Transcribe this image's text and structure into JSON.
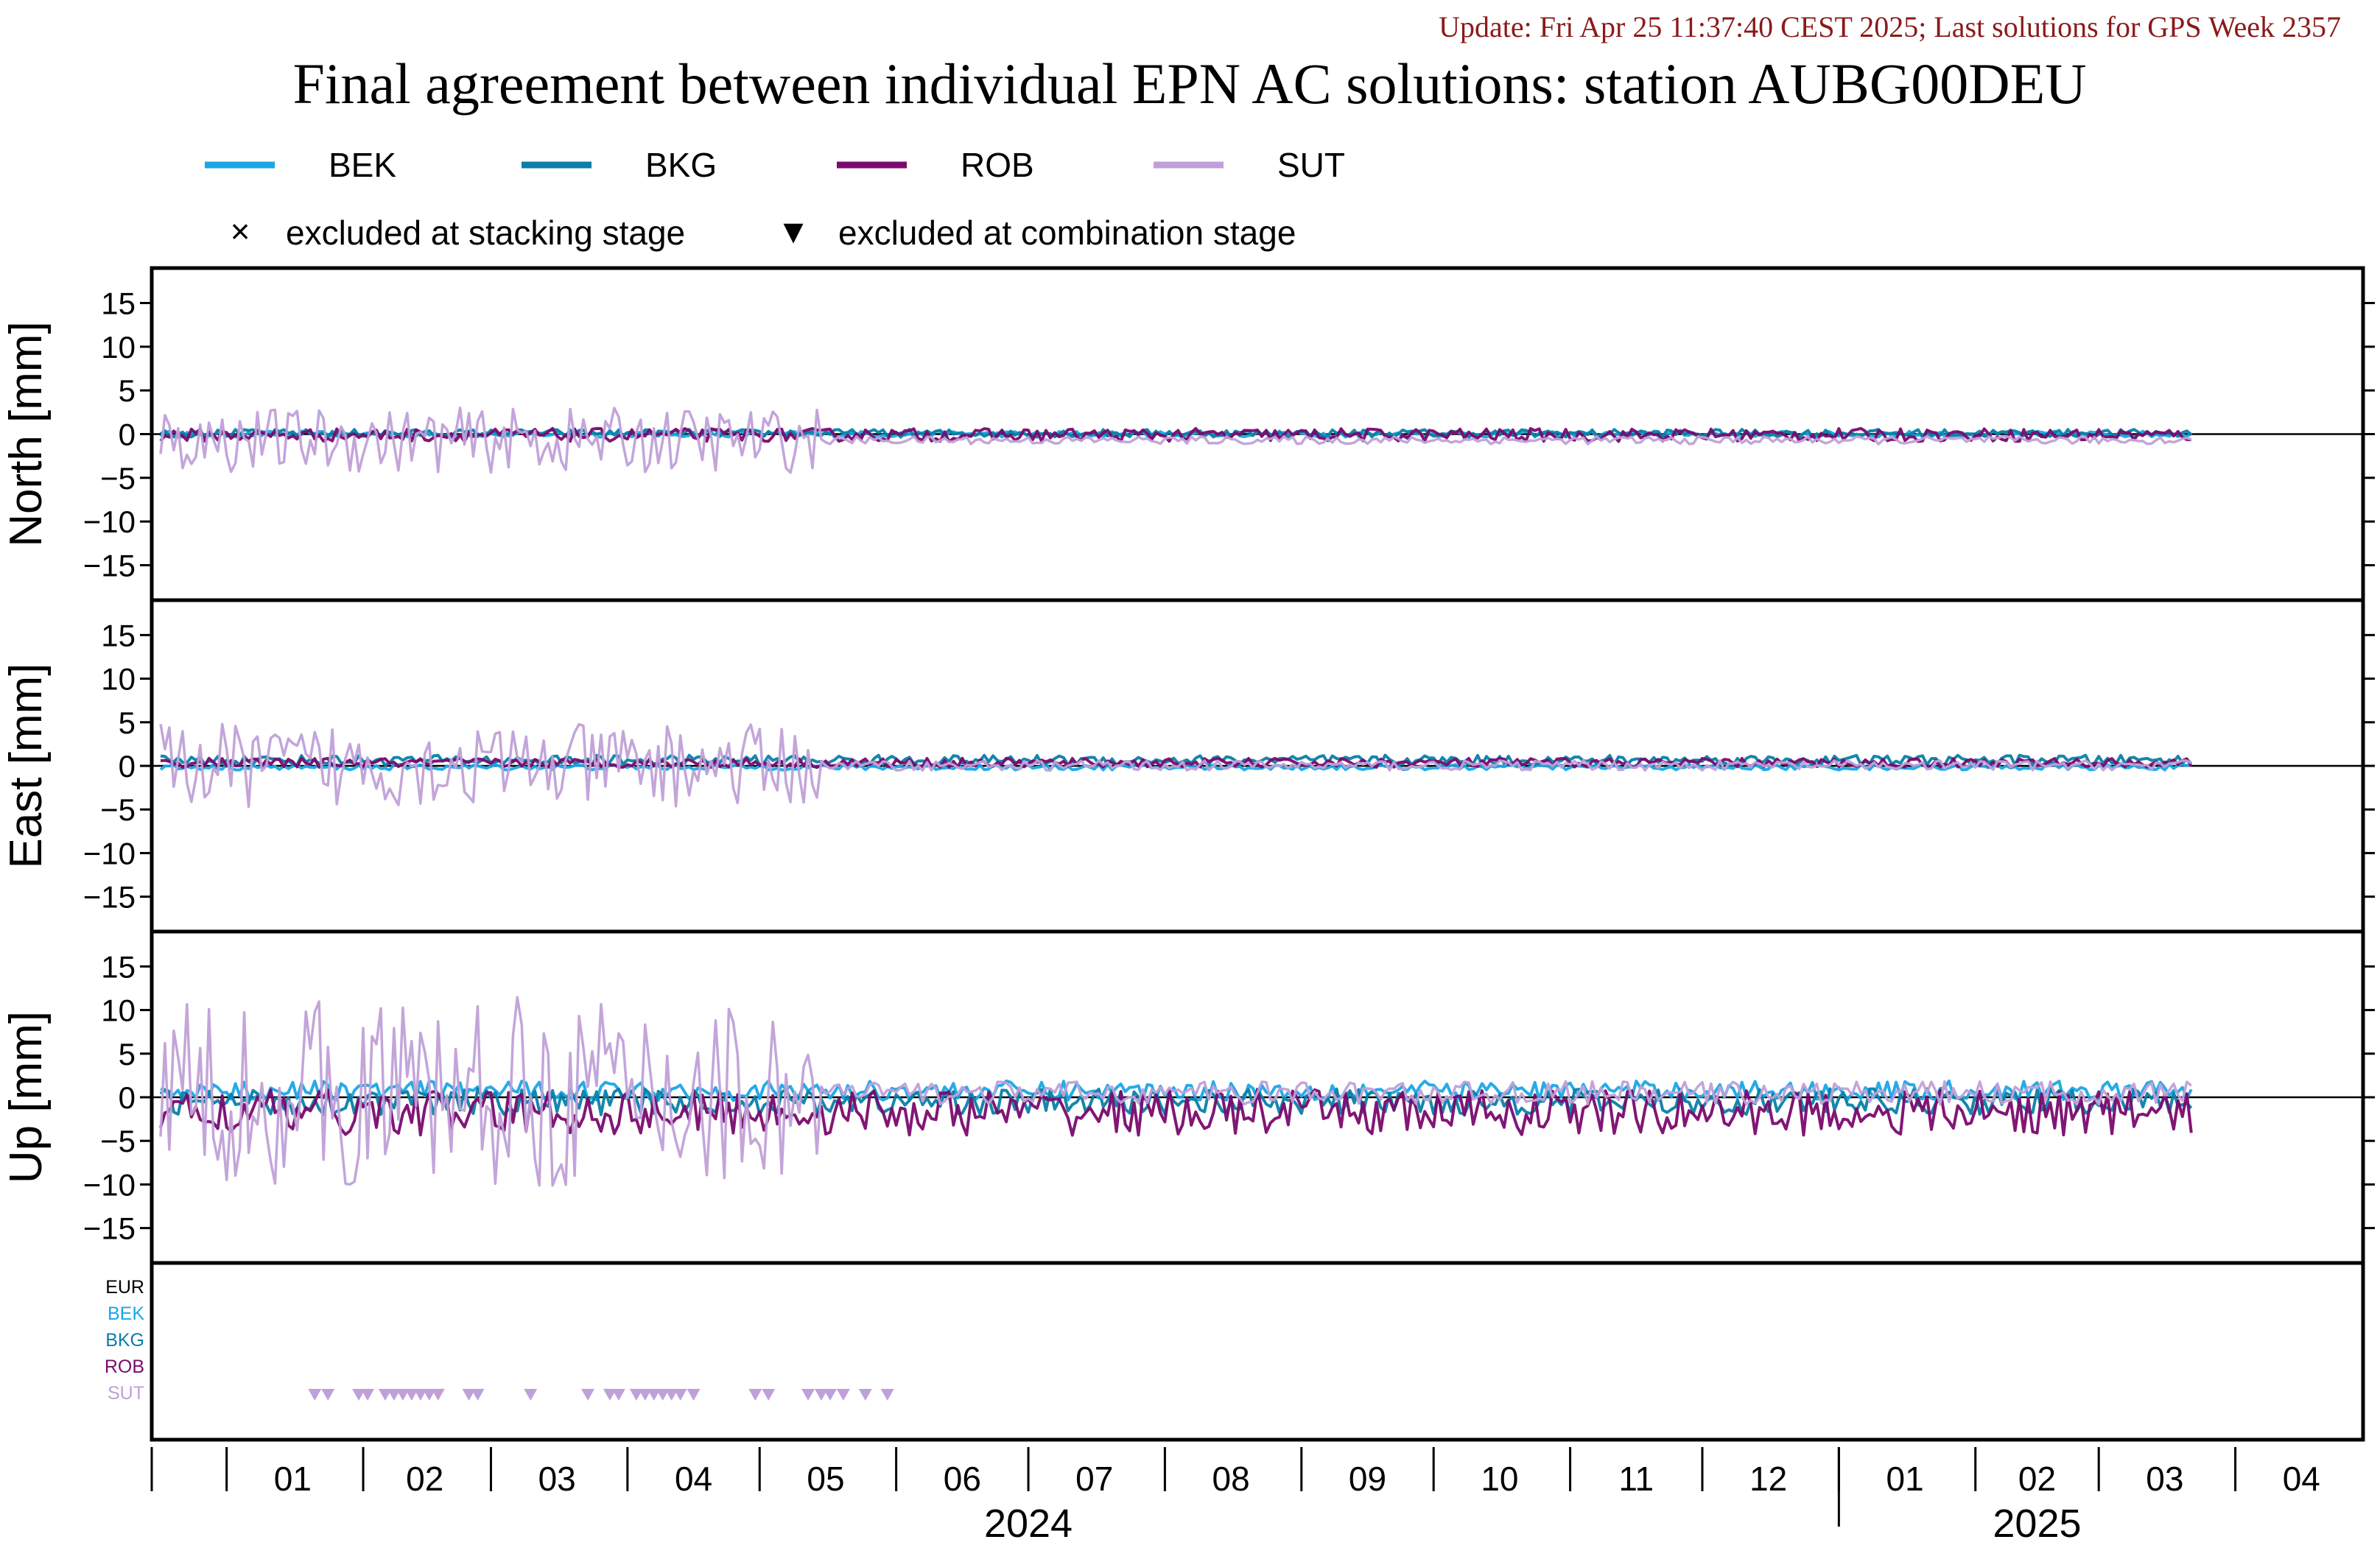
{
  "header": {
    "update_line": "Update: Fri Apr 25 11:37:40 CEST 2025; Last solutions for GPS Week 2357",
    "title": "Final agreement between individual EPN AC solutions: station AUBG00DEU"
  },
  "legend": {
    "series": [
      {
        "name": "BEK",
        "color": "#1aa6e6"
      },
      {
        "name": "BKG",
        "color": "#0a7fa8"
      },
      {
        "name": "ROB",
        "color": "#7a0a6e"
      },
      {
        "name": "SUT",
        "color": "#c0a0d8"
      }
    ],
    "markers": [
      {
        "symbol": "×",
        "label": "excluded at stacking stage"
      },
      {
        "symbol": "▼",
        "label": "excluded at combination stage"
      }
    ]
  },
  "chart_data": {
    "type": "line",
    "x_range": [
      "2023-12-15",
      "2025-04-30"
    ],
    "ylim": [
      -19,
      19
    ],
    "yticks": [
      15,
      10,
      5,
      0,
      -5,
      -10,
      -15
    ],
    "panels": [
      {
        "ylabel": "North [mm]",
        "series": [
          {
            "name": "BEK",
            "approx_range": [
              -0.7,
              0.7
            ]
          },
          {
            "name": "BKG",
            "approx_range": [
              -0.8,
              1.0
            ]
          },
          {
            "name": "ROB",
            "approx_range": [
              -1.6,
              1.4
            ]
          },
          {
            "name": "SUT",
            "approx_range": [
              -4.4,
              3.0
            ],
            "larger_scatter_until": "2024-05-15"
          }
        ]
      },
      {
        "ylabel": "East [mm]",
        "series": [
          {
            "name": "BEK",
            "approx_range": [
              -0.8,
              0.5
            ]
          },
          {
            "name": "BKG",
            "approx_range": [
              -0.5,
              1.8
            ]
          },
          {
            "name": "ROB",
            "approx_range": [
              -0.7,
              1.4
            ]
          },
          {
            "name": "SUT",
            "approx_range": [
              -4.7,
              4.8
            ],
            "larger_scatter_until": "2024-05-15"
          }
        ]
      },
      {
        "ylabel": "Up [mm]",
        "series": [
          {
            "name": "BEK",
            "approx_range": [
              -1.5,
              3.0
            ]
          },
          {
            "name": "BKG",
            "approx_range": [
              -3.5,
              2.5
            ]
          },
          {
            "name": "ROB",
            "approx_range": [
              -7.0,
              3.5
            ]
          },
          {
            "name": "SUT",
            "approx_range": [
              -10.5,
              11.5
            ],
            "larger_scatter_until": "2024-05-15"
          }
        ]
      }
    ],
    "exclusion_panel": {
      "labels": [
        {
          "name": "EUR",
          "color": "#000000"
        },
        {
          "name": "BEK",
          "color": "#1aa6e6"
        },
        {
          "name": "BKG",
          "color": "#0a7fa8"
        },
        {
          "name": "ROB",
          "color": "#7a0a6e"
        },
        {
          "name": "SUT",
          "color": "#c0a0d8"
        }
      ],
      "sut_combination_exclusions": [
        "2024-01-21",
        "2024-01-24",
        "2024-01-31",
        "2024-02-02",
        "2024-02-06",
        "2024-02-08",
        "2024-02-10",
        "2024-02-12",
        "2024-02-14",
        "2024-02-16",
        "2024-02-18",
        "2024-02-25",
        "2024-02-27",
        "2024-03-10",
        "2024-03-23",
        "2024-03-28",
        "2024-03-30",
        "2024-04-03",
        "2024-04-05",
        "2024-04-07",
        "2024-04-09",
        "2024-04-11",
        "2024-04-13",
        "2024-04-16",
        "2024-04-30",
        "2024-05-03",
        "2024-05-12",
        "2024-05-15",
        "2024-05-17",
        "2024-05-20",
        "2024-05-25",
        "2024-05-30"
      ]
    },
    "x_axis": {
      "months": [
        {
          "label": "01",
          "center": "2024-01-16"
        },
        {
          "label": "02",
          "center": "2024-02-15"
        },
        {
          "label": "03",
          "center": "2024-03-16"
        },
        {
          "label": "04",
          "center": "2024-04-16"
        },
        {
          "label": "05",
          "center": "2024-05-16"
        },
        {
          "label": "06",
          "center": "2024-06-16"
        },
        {
          "label": "07",
          "center": "2024-07-16"
        },
        {
          "label": "08",
          "center": "2024-08-16"
        },
        {
          "label": "09",
          "center": "2024-09-16"
        },
        {
          "label": "10",
          "center": "2024-10-16"
        },
        {
          "label": "11",
          "center": "2024-11-16"
        },
        {
          "label": "12",
          "center": "2024-12-16"
        },
        {
          "label": "01",
          "center": "2025-01-16"
        },
        {
          "label": "02",
          "center": "2025-02-15"
        },
        {
          "label": "03",
          "center": "2025-03-16"
        },
        {
          "label": "04",
          "center": "2025-04-16"
        }
      ],
      "month_boundaries": [
        "2024-01-01",
        "2024-02-01",
        "2024-03-01",
        "2024-04-01",
        "2024-05-01",
        "2024-06-01",
        "2024-07-01",
        "2024-08-01",
        "2024-09-01",
        "2024-10-01",
        "2024-11-01",
        "2024-12-01",
        "2025-01-01",
        "2025-02-01",
        "2025-03-01",
        "2025-04-01"
      ],
      "years": [
        {
          "label": "2024",
          "center": "2024-07-01"
        },
        {
          "label": "2025",
          "center": "2025-02-15"
        }
      ],
      "year_boundaries": [
        "2025-01-01"
      ]
    },
    "data_end": "2025-03-22"
  }
}
